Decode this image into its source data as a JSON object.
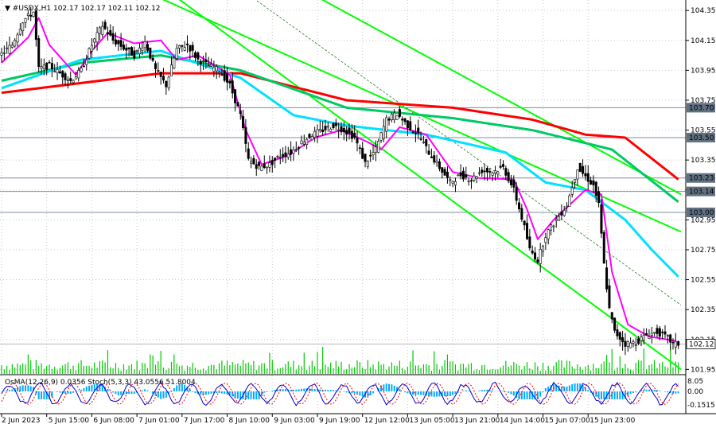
{
  "header": {
    "symbol": "#USDX,H1",
    "ohlc": "102.17 102.17 102.11 102.12"
  },
  "indicator_header": "OsMA(12,26,9) 0.0356 Stoch(5,3,3) 43.0556 51.8004",
  "colors": {
    "background": "#ffffff",
    "candle": "#000000",
    "ma_red": "#ff0000",
    "ma_green": "#00c864",
    "ma_cyan": "#00e0ff",
    "ma_magenta": "#ff00ff",
    "channel": "#00ff00",
    "volume": "#00c800",
    "osma": "#00aaff",
    "stoch_main": "#0000cc",
    "stoch_signal": "#ff0000",
    "hline": "#7c8ca0",
    "grid": "#c8c8c8",
    "level_label_bg": "#607080",
    "price_label_bg": "#ffffff"
  },
  "chart_data": {
    "type": "line",
    "title": "#USDX,H1",
    "y_ticks": [
      "104.35",
      "104.15",
      "103.95",
      "103.75",
      "103.55",
      "103.35",
      "103.15",
      "102.95",
      "102.75",
      "102.55",
      "102.35",
      "102.15",
      "101.95"
    ],
    "ylim": [
      101.92,
      104.42
    ],
    "x_ticks": [
      "2 Jun 2023",
      "5 Jun 15:00",
      "6 Jun 08:00",
      "7 Jun 01:00",
      "7 Jun 17:00",
      "8 Jun 10:00",
      "9 Jun 03:00",
      "9 Jun 19:00",
      "12 Jun 12:00",
      "13 Jun 05:00",
      "13 Jun 21:00",
      "14 Jun 14:00",
      "15 Jun 07:00",
      "15 Jun 23:00"
    ],
    "bars_per_tick": 17,
    "close_series": [
      {
        "bar": 0,
        "value": 104.06
      },
      {
        "bar": 4,
        "value": 104.12
      },
      {
        "bar": 8,
        "value": 104.28
      },
      {
        "bar": 12,
        "value": 104.34
      },
      {
        "bar": 14,
        "value": 103.96
      },
      {
        "bar": 18,
        "value": 103.98
      },
      {
        "bar": 22,
        "value": 103.93
      },
      {
        "bar": 26,
        "value": 103.88
      },
      {
        "bar": 30,
        "value": 103.95
      },
      {
        "bar": 34,
        "value": 104.12
      },
      {
        "bar": 38,
        "value": 104.25
      },
      {
        "bar": 42,
        "value": 104.15
      },
      {
        "bar": 46,
        "value": 104.1
      },
      {
        "bar": 50,
        "value": 104.05
      },
      {
        "bar": 54,
        "value": 104.14
      },
      {
        "bar": 58,
        "value": 103.95
      },
      {
        "bar": 62,
        "value": 103.85
      },
      {
        "bar": 66,
        "value": 104.09
      },
      {
        "bar": 70,
        "value": 104.12
      },
      {
        "bar": 74,
        "value": 104.02
      },
      {
        "bar": 78,
        "value": 103.98
      },
      {
        "bar": 82,
        "value": 103.95
      },
      {
        "bar": 86,
        "value": 103.85
      },
      {
        "bar": 90,
        "value": 103.65
      },
      {
        "bar": 93,
        "value": 103.35
      },
      {
        "bar": 97,
        "value": 103.3
      },
      {
        "bar": 101,
        "value": 103.32
      },
      {
        "bar": 105,
        "value": 103.38
      },
      {
        "bar": 109,
        "value": 103.4
      },
      {
        "bar": 113,
        "value": 103.47
      },
      {
        "bar": 117,
        "value": 103.52
      },
      {
        "bar": 121,
        "value": 103.55
      },
      {
        "bar": 125,
        "value": 103.58
      },
      {
        "bar": 129,
        "value": 103.55
      },
      {
        "bar": 133,
        "value": 103.5
      },
      {
        "bar": 137,
        "value": 103.33
      },
      {
        "bar": 141,
        "value": 103.42
      },
      {
        "bar": 145,
        "value": 103.62
      },
      {
        "bar": 149,
        "value": 103.66
      },
      {
        "bar": 153,
        "value": 103.58
      },
      {
        "bar": 157,
        "value": 103.52
      },
      {
        "bar": 161,
        "value": 103.4
      },
      {
        "bar": 165,
        "value": 103.3
      },
      {
        "bar": 169,
        "value": 103.2
      },
      {
        "bar": 173,
        "value": 103.25
      },
      {
        "bar": 177,
        "value": 103.22
      },
      {
        "bar": 181,
        "value": 103.28
      },
      {
        "bar": 185,
        "value": 103.27
      },
      {
        "bar": 189,
        "value": 103.3
      },
      {
        "bar": 193,
        "value": 103.15
      },
      {
        "bar": 197,
        "value": 102.9
      },
      {
        "bar": 199,
        "value": 102.75
      },
      {
        "bar": 202,
        "value": 102.68
      },
      {
        "bar": 205,
        "value": 102.85
      },
      {
        "bar": 209,
        "value": 102.95
      },
      {
        "bar": 213,
        "value": 103.05
      },
      {
        "bar": 217,
        "value": 103.3
      },
      {
        "bar": 221,
        "value": 103.22
      },
      {
        "bar": 223,
        "value": 103.18
      },
      {
        "bar": 225,
        "value": 103.05
      },
      {
        "bar": 227,
        "value": 102.65
      },
      {
        "bar": 229,
        "value": 102.35
      },
      {
        "bar": 231,
        "value": 102.2
      },
      {
        "bar": 235,
        "value": 102.12
      },
      {
        "bar": 239,
        "value": 102.13
      },
      {
        "bar": 243,
        "value": 102.18
      },
      {
        "bar": 247,
        "value": 102.2
      },
      {
        "bar": 251,
        "value": 102.16
      },
      {
        "bar": 253,
        "value": 102.12
      }
    ],
    "series": [
      {
        "color": "#ff0000",
        "values": [
          [
            0,
            103.8
          ],
          [
            60,
            103.93
          ],
          [
            90,
            103.93
          ],
          [
            130,
            103.75
          ],
          [
            170,
            103.7
          ],
          [
            200,
            103.62
          ],
          [
            220,
            103.52
          ],
          [
            235,
            103.5
          ],
          [
            255,
            103.22
          ]
        ]
      },
      {
        "color": "#00c864",
        "values": [
          [
            0,
            103.88
          ],
          [
            30,
            104.0
          ],
          [
            60,
            104.05
          ],
          [
            90,
            103.95
          ],
          [
            130,
            103.7
          ],
          [
            170,
            103.63
          ],
          [
            200,
            103.55
          ],
          [
            230,
            103.42
          ],
          [
            255,
            103.07
          ]
        ]
      },
      {
        "color": "#00e0ff",
        "values": [
          [
            0,
            103.83
          ],
          [
            30,
            104.02
          ],
          [
            60,
            104.08
          ],
          [
            90,
            103.9
          ],
          [
            110,
            103.65
          ],
          [
            130,
            103.58
          ],
          [
            160,
            103.52
          ],
          [
            190,
            103.4
          ],
          [
            205,
            103.2
          ],
          [
            220,
            103.15
          ],
          [
            235,
            102.95
          ],
          [
            245,
            102.75
          ],
          [
            255,
            102.57
          ]
        ]
      },
      {
        "color": "#ff00ff",
        "values": [
          [
            0,
            104.0
          ],
          [
            10,
            104.17
          ],
          [
            14,
            104.3
          ],
          [
            18,
            104.12
          ],
          [
            28,
            103.92
          ],
          [
            34,
            104.08
          ],
          [
            40,
            104.2
          ],
          [
            50,
            104.13
          ],
          [
            60,
            104.15
          ],
          [
            66,
            104.02
          ],
          [
            74,
            104.05
          ],
          [
            86,
            103.92
          ],
          [
            92,
            103.55
          ],
          [
            98,
            103.32
          ],
          [
            108,
            103.38
          ],
          [
            118,
            103.5
          ],
          [
            128,
            103.55
          ],
          [
            138,
            103.47
          ],
          [
            143,
            103.42
          ],
          [
            150,
            103.57
          ],
          [
            160,
            103.52
          ],
          [
            170,
            103.27
          ],
          [
            180,
            103.23
          ],
          [
            193,
            103.22
          ],
          [
            198,
            103.02
          ],
          [
            202,
            102.82
          ],
          [
            208,
            102.95
          ],
          [
            214,
            103.05
          ],
          [
            220,
            103.15
          ],
          [
            226,
            103.12
          ],
          [
            230,
            102.6
          ],
          [
            236,
            102.25
          ],
          [
            244,
            102.17
          ],
          [
            254,
            102.14
          ]
        ]
      }
    ],
    "levels": [
      "103.70",
      "103.50",
      "103.23",
      "103.14",
      "103.00"
    ],
    "current_price": "102.12"
  }
}
